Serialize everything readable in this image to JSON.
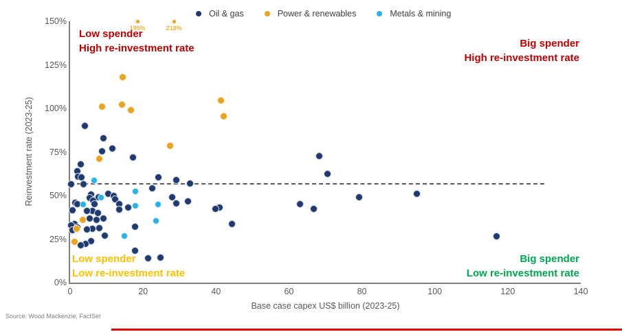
{
  "source": "Source: Wood Mackenzie, FactSet",
  "footer_rule_color": "#e60000",
  "quadrants": {
    "top_left": {
      "line1": "Low spender",
      "line2": "High re-investment rate",
      "color": "#c00000"
    },
    "top_right": {
      "line1": "Big spender",
      "line2": "High re-investment rate",
      "color": "#c00000"
    },
    "bottom_left": {
      "line1": "Low spender",
      "line2": "Low re-investment rate",
      "color": "#ffc000"
    },
    "bottom_right": {
      "line1": "Big spender",
      "line2": "Low re-investment rate",
      "color": "#00a651"
    }
  },
  "chart_data": {
    "type": "scatter",
    "title": "",
    "xlabel": "Base case capex US$ billion (2023-25)",
    "ylabel": "Reinvestment rate (2023-25)",
    "xlim": [
      0,
      140
    ],
    "ylim": [
      0,
      150
    ],
    "grid": false,
    "legend_position": "top",
    "x_ticks": [
      {
        "value": 0,
        "label": "0"
      },
      {
        "value": 20,
        "label": "20"
      },
      {
        "value": 40,
        "label": "40"
      },
      {
        "value": 60,
        "label": "60"
      },
      {
        "value": 80,
        "label": "80"
      },
      {
        "value": 100,
        "label": "100"
      },
      {
        "value": 120,
        "label": "120"
      },
      {
        "value": 140,
        "label": "140"
      }
    ],
    "y_ticks": [
      {
        "value": 0,
        "label": "0%"
      },
      {
        "value": 25,
        "label": "25%"
      },
      {
        "value": 50,
        "label": "50%"
      },
      {
        "value": 75,
        "label": "75%"
      },
      {
        "value": 100,
        "label": "100%"
      },
      {
        "value": 125,
        "label": "125%"
      },
      {
        "value": 150,
        "label": "150%"
      }
    ],
    "reference_line": {
      "y": 56.5,
      "x_start": 0,
      "x_end": 130,
      "style": "dashed",
      "color": "#595959"
    },
    "series": [
      {
        "name": "Oil & gas",
        "id": "oil-gas",
        "color": "#1e3a6f",
        "marker_size": 11,
        "points": [
          [
            4,
            90
          ],
          [
            9.1,
            83
          ],
          [
            11.5,
            77
          ],
          [
            8.7,
            75.5
          ],
          [
            68.3,
            72.5
          ],
          [
            17.2,
            72
          ],
          [
            3,
            68
          ],
          [
            1.9,
            64
          ],
          [
            70.6,
            62.5
          ],
          [
            2.2,
            61
          ],
          [
            3.1,
            60.5
          ],
          [
            24.2,
            60.5
          ],
          [
            29.2,
            59
          ],
          [
            32.8,
            57
          ],
          [
            0.2,
            56.5
          ],
          [
            3.6,
            56.5
          ],
          [
            22.6,
            54
          ],
          [
            10.4,
            51
          ],
          [
            95.1,
            51
          ],
          [
            5.7,
            50.5
          ],
          [
            11.9,
            50
          ],
          [
            79.2,
            49
          ],
          [
            27.9,
            49
          ],
          [
            7.8,
            49
          ],
          [
            5.3,
            48.5
          ],
          [
            12.4,
            48
          ],
          [
            6.3,
            47
          ],
          [
            32.3,
            46.5
          ],
          [
            1.5,
            46
          ],
          [
            29.1,
            45.5
          ],
          [
            2,
            45.2
          ],
          [
            6.6,
            45
          ],
          [
            13.4,
            45
          ],
          [
            63,
            45
          ],
          [
            16,
            43
          ],
          [
            41,
            43
          ],
          [
            39.8,
            42.5
          ],
          [
            66.8,
            42.5
          ],
          [
            13.4,
            42
          ],
          [
            0.6,
            41.5
          ],
          [
            6.2,
            41.3
          ],
          [
            4.7,
            41
          ],
          [
            7.7,
            40
          ],
          [
            5.3,
            37
          ],
          [
            9.1,
            37
          ],
          [
            7.2,
            36
          ],
          [
            44.3,
            33.5
          ],
          [
            1.2,
            33.5
          ],
          [
            0.3,
            33
          ],
          [
            17.8,
            32
          ],
          [
            2,
            31.5
          ],
          [
            6.2,
            31
          ],
          [
            8.1,
            31.3
          ],
          [
            4.7,
            30.5
          ],
          [
            0.7,
            30
          ],
          [
            9.5,
            27
          ],
          [
            117,
            26.7
          ],
          [
            5.7,
            24
          ],
          [
            4.3,
            22.4
          ],
          [
            2.9,
            21.3
          ],
          [
            17.9,
            18.5
          ],
          [
            21.3,
            14
          ],
          [
            24.7,
            14.5
          ]
        ]
      },
      {
        "name": "Power & renewables",
        "id": "power-renewables",
        "color": "#eba420",
        "label_color": "#f0b53c",
        "marker_size": 11,
        "points": [
          [
            18.5,
            150,
            7
          ],
          [
            28.5,
            150,
            7
          ],
          [
            14.5,
            118
          ],
          [
            41.3,
            104.5
          ],
          [
            14.2,
            102
          ],
          [
            8.7,
            101
          ],
          [
            16.6,
            99
          ],
          [
            42.1,
            95.5
          ],
          [
            27.5,
            78.5
          ],
          [
            8.1,
            71
          ],
          [
            3.4,
            36
          ],
          [
            1.8,
            31
          ],
          [
            1.3,
            23.5
          ]
        ],
        "point_labels": [
          {
            "x": 18.5,
            "y": 150,
            "text": "195%"
          },
          {
            "x": 28.5,
            "y": 150,
            "text": "218%"
          }
        ]
      },
      {
        "name": "Metals & mining",
        "id": "metals-mining",
        "color": "#29b2e6",
        "marker_size": 10,
        "points": [
          [
            6.6,
            58.5
          ],
          [
            17.9,
            52.5
          ],
          [
            8.4,
            49
          ],
          [
            3.6,
            45
          ],
          [
            17.9,
            44
          ],
          [
            24.1,
            45
          ],
          [
            23.5,
            35.5
          ],
          [
            14.9,
            26.7
          ]
        ]
      }
    ]
  }
}
